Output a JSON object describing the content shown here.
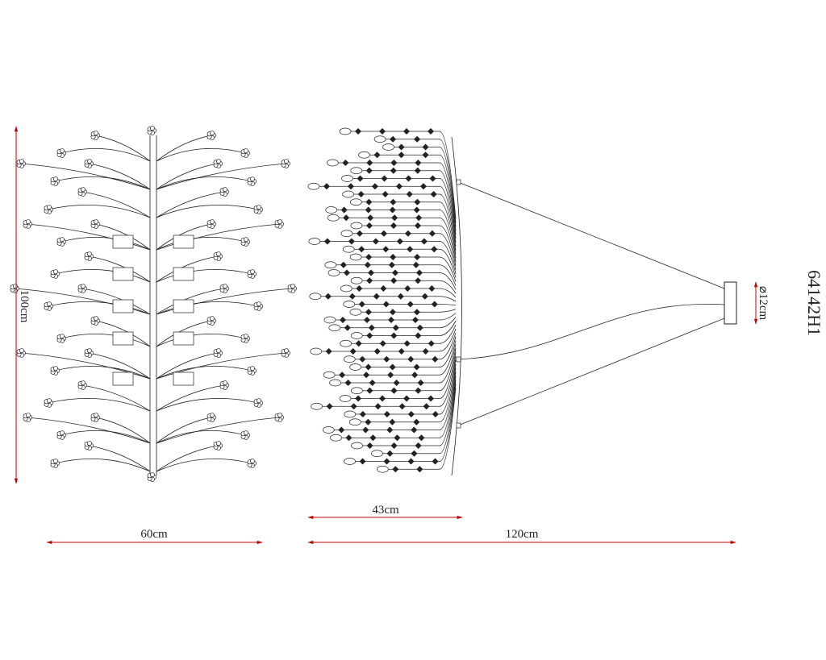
{
  "drawing": {
    "model": "64142H1",
    "dimensions": {
      "height": "100cm",
      "front_width": "60cm",
      "cluster_width": "43cm",
      "total_width": "120cm",
      "canopy_diameter": "⌀12cm"
    }
  }
}
